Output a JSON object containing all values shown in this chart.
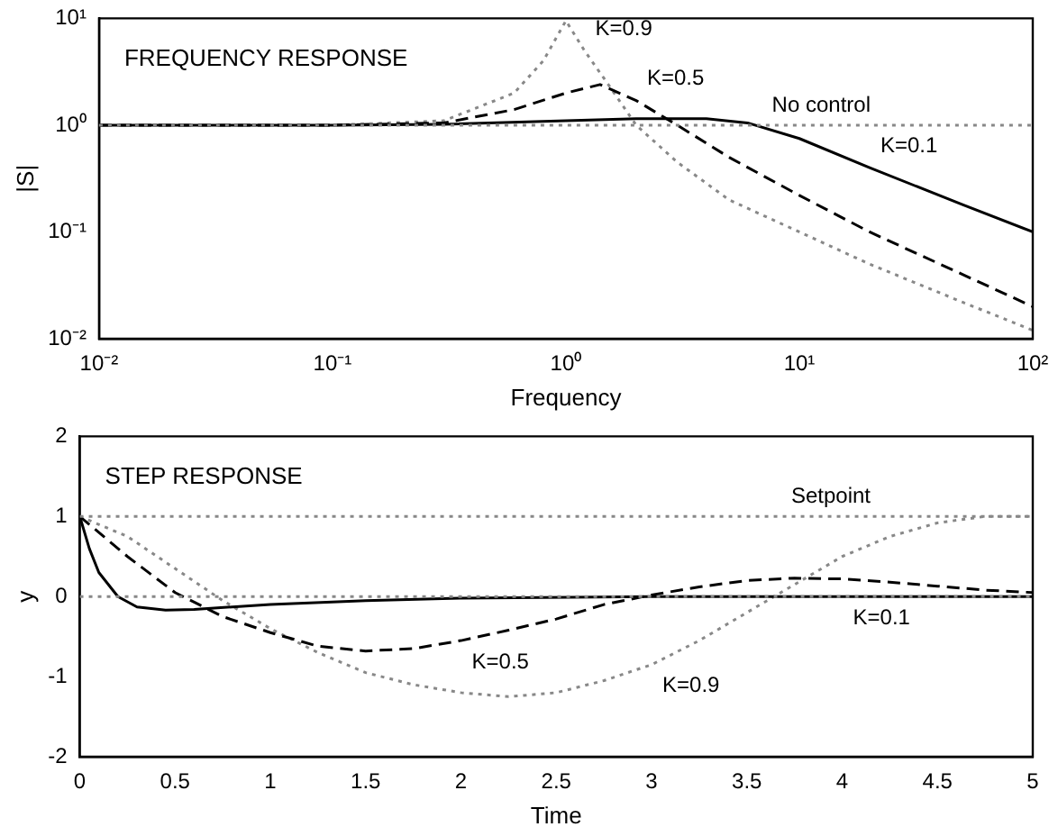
{
  "chart_data": [
    {
      "type": "line",
      "title": "FREQUENCY RESPONSE",
      "xlabel": "Frequency",
      "ylabel": "|S|",
      "log": "xy",
      "grid": false,
      "legend": false,
      "marker": "none",
      "xlim": [
        0.01,
        100
      ],
      "xticks": [
        {
          "value": 0.01,
          "label": "10⁻²"
        },
        {
          "value": 0.1,
          "label": "10⁻¹"
        },
        {
          "value": 1,
          "label": "10⁰"
        },
        {
          "value": 10,
          "label": "10¹"
        },
        {
          "value": 100,
          "label": "10²"
        }
      ],
      "ylim": [
        0.01,
        10
      ],
      "yticks": [
        {
          "value": 0.01,
          "label": "10⁻²"
        },
        {
          "value": 0.1,
          "label": "10⁻¹"
        },
        {
          "value": 1,
          "label": "10⁰"
        },
        {
          "value": 10,
          "label": "10¹"
        }
      ],
      "series": [
        {
          "color": "#000000",
          "line_style": "solid",
          "x": [
            0.01,
            0.1,
            0.3,
            1,
            2,
            4,
            6,
            10,
            20,
            50,
            100
          ],
          "values": [
            1,
            1,
            1.02,
            1.1,
            1.15,
            1.15,
            1.05,
            0.75,
            0.4,
            0.18,
            0.1
          ]
        },
        {
          "color": "#000000",
          "line_style": "dashed",
          "x": [
            0.01,
            0.1,
            0.3,
            0.6,
            1,
            1.4,
            2,
            3,
            5,
            10,
            20,
            50,
            100
          ],
          "values": [
            1,
            1,
            1.05,
            1.4,
            2,
            2.4,
            1.7,
            1,
            0.5,
            0.22,
            0.1,
            0.04,
            0.02
          ]
        },
        {
          "color": "#888888",
          "line_style": "dotted",
          "x": [
            0.01,
            0.1,
            0.3,
            0.6,
            0.8,
            1,
            1.2,
            1.5,
            2,
            3,
            5,
            10,
            20,
            50,
            100
          ],
          "values": [
            1,
            1,
            1.1,
            2,
            4,
            9.5,
            5,
            2.5,
            1,
            0.45,
            0.2,
            0.1,
            0.05,
            0.022,
            0.012
          ]
        }
      ],
      "ref_lines": [
        {
          "axis": "y",
          "value": 1,
          "label": "No control",
          "color": "#888888",
          "line_style": "dotted"
        }
      ],
      "annotations": [
        {
          "text": "K=0.9",
          "x": 1.2,
          "y": 5
        },
        {
          "text": "K=0.5",
          "x": 2,
          "y": 1.7
        },
        {
          "text": "K=0.1",
          "x": 20,
          "y": 0.4
        }
      ]
    },
    {
      "type": "line",
      "title": "STEP RESPONSE",
      "xlabel": "Time",
      "ylabel": "y",
      "grid": false,
      "legend": false,
      "marker": "none",
      "xlim": [
        0,
        5
      ],
      "xticks": [
        0,
        0.5,
        1,
        1.5,
        2,
        2.5,
        3,
        3.5,
        4,
        4.5,
        5
      ],
      "ylim": [
        -2,
        2
      ],
      "yticks": [
        -2,
        -1,
        0,
        1,
        2
      ],
      "series": [
        {
          "color": "#000000",
          "line_style": "solid",
          "x": [
            0,
            0.05,
            0.1,
            0.2,
            0.3,
            0.45,
            0.6,
            1,
            1.5,
            2,
            3,
            4,
            5
          ],
          "values": [
            1,
            0.6,
            0.3,
            0,
            -0.13,
            -0.17,
            -0.16,
            -0.1,
            -0.05,
            -0.02,
            0,
            0,
            0
          ]
        },
        {
          "color": "#000000",
          "line_style": "dashed",
          "x": [
            0,
            0.25,
            0.5,
            0.75,
            1,
            1.25,
            1.5,
            1.75,
            2,
            2.25,
            2.5,
            2.75,
            3,
            3.25,
            3.5,
            3.75,
            4,
            4.25,
            4.5,
            4.75,
            5
          ],
          "values": [
            1,
            0.5,
            0.05,
            -0.25,
            -0.45,
            -0.62,
            -0.68,
            -0.65,
            -0.55,
            -0.42,
            -0.28,
            -0.1,
            0.02,
            0.12,
            0.2,
            0.23,
            0.22,
            0.18,
            0.13,
            0.08,
            0.05
          ]
        },
        {
          "color": "#888888",
          "line_style": "dotted",
          "x": [
            0,
            0.25,
            0.5,
            0.75,
            1,
            1.25,
            1.5,
            1.75,
            2,
            2.25,
            2.5,
            2.75,
            3,
            3.25,
            3.5,
            3.75,
            4,
            4.25,
            4.5,
            4.75,
            5
          ],
          "values": [
            1,
            0.75,
            0.35,
            -0.05,
            -0.4,
            -0.7,
            -0.95,
            -1.1,
            -1.2,
            -1.25,
            -1.2,
            -1.05,
            -0.85,
            -0.55,
            -0.2,
            0.15,
            0.5,
            0.75,
            0.92,
            1,
            1
          ]
        }
      ],
      "ref_lines": [
        {
          "axis": "y",
          "value": 1,
          "label": "Setpoint",
          "color": "#888888",
          "line_style": "dotted"
        },
        {
          "axis": "y",
          "value": 0,
          "color": "#888888",
          "line_style": "dotted"
        }
      ],
      "annotations": [
        {
          "text": "K=0.1",
          "x": 4,
          "y": 0
        },
        {
          "text": "K=0.5",
          "x": 2,
          "y": -0.55
        },
        {
          "text": "K=0.9",
          "x": 3,
          "y": -0.85
        }
      ]
    }
  ]
}
